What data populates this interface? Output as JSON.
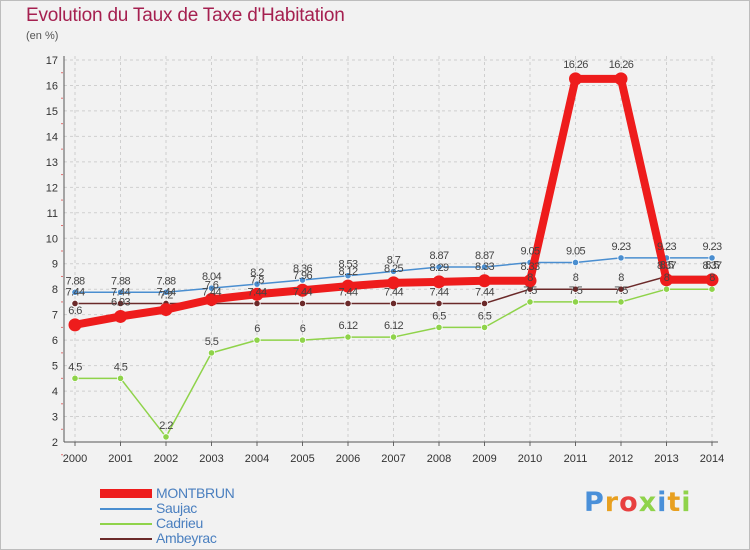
{
  "chart_data": {
    "type": "line",
    "title": "Evolution du Taux de Taxe d'Habitation",
    "ylabel": "(en %)",
    "categories": [
      "2000",
      "2001",
      "2002",
      "2003",
      "2004",
      "2005",
      "2006",
      "2007",
      "2008",
      "2009",
      "2010",
      "2011",
      "2012",
      "2013",
      "2014"
    ],
    "ylim": [
      2,
      17
    ],
    "yticks": [
      2,
      3,
      4,
      5,
      6,
      7,
      8,
      9,
      10,
      11,
      12,
      13,
      14,
      15,
      16,
      17
    ],
    "grid": true,
    "series": [
      {
        "name": "MONTBRUN",
        "color": "#ee1c1c",
        "values": [
          6.6,
          6.93,
          7.2,
          7.6,
          7.8,
          7.96,
          8.12,
          8.25,
          8.29,
          8.33,
          8.33,
          16.26,
          16.26,
          8.37,
          8.37
        ],
        "labels": [
          "6.6",
          "6.93",
          "7.2",
          "7.6",
          "7.8",
          "7.96",
          "8.12",
          "8.25",
          "8.29",
          "8.33",
          "8.33",
          "16.26",
          "16.26",
          "8.37",
          "8.37"
        ]
      },
      {
        "name": "Saujac",
        "color": "#4a8ed0",
        "values": [
          7.88,
          7.88,
          7.88,
          8.04,
          8.2,
          8.36,
          8.53,
          8.7,
          8.87,
          8.87,
          9.05,
          9.05,
          9.23,
          9.23,
          9.23
        ],
        "labels": [
          "7.88",
          "7.88",
          "7.88",
          "8.04",
          "8.2",
          "8.36",
          "8.53",
          "8.7",
          "8.87",
          "8.87",
          "9.05",
          "9.05",
          "9.23",
          "9.23",
          "9.23"
        ]
      },
      {
        "name": "Cadrieu",
        "color": "#8fd34a",
        "values": [
          4.5,
          4.5,
          2.2,
          5.5,
          6,
          6,
          6.12,
          6.12,
          6.5,
          6.5,
          7.5,
          7.5,
          7.5,
          8,
          8
        ],
        "labels": [
          "4.5",
          "4.5",
          "2.2",
          "5.5",
          "6",
          "6",
          "6.12",
          "6.12",
          "6.5",
          "6.5",
          "7.5",
          "7.5",
          "7.5",
          "8",
          "8"
        ]
      },
      {
        "name": "Ambeyrac",
        "color": "#6b2a2a",
        "values": [
          7.44,
          7.44,
          7.44,
          7.44,
          7.44,
          7.44,
          7.44,
          7.44,
          7.44,
          7.44,
          8,
          8,
          8,
          8.5,
          8.5
        ],
        "labels": [
          "7.44",
          "7.44",
          "7.44",
          "7.44",
          "7.44",
          "7.44",
          "7.44",
          "7.44",
          "7.44",
          "7.44",
          "8",
          "8",
          "8",
          "8.5",
          "8.5"
        ]
      }
    ]
  },
  "logo_text": "Proxiti",
  "logo_colors": [
    "#4a90d9",
    "#e8a020",
    "#e84040",
    "#8fd34a",
    "#4a90d9",
    "#e8a020",
    "#8fd34a"
  ]
}
